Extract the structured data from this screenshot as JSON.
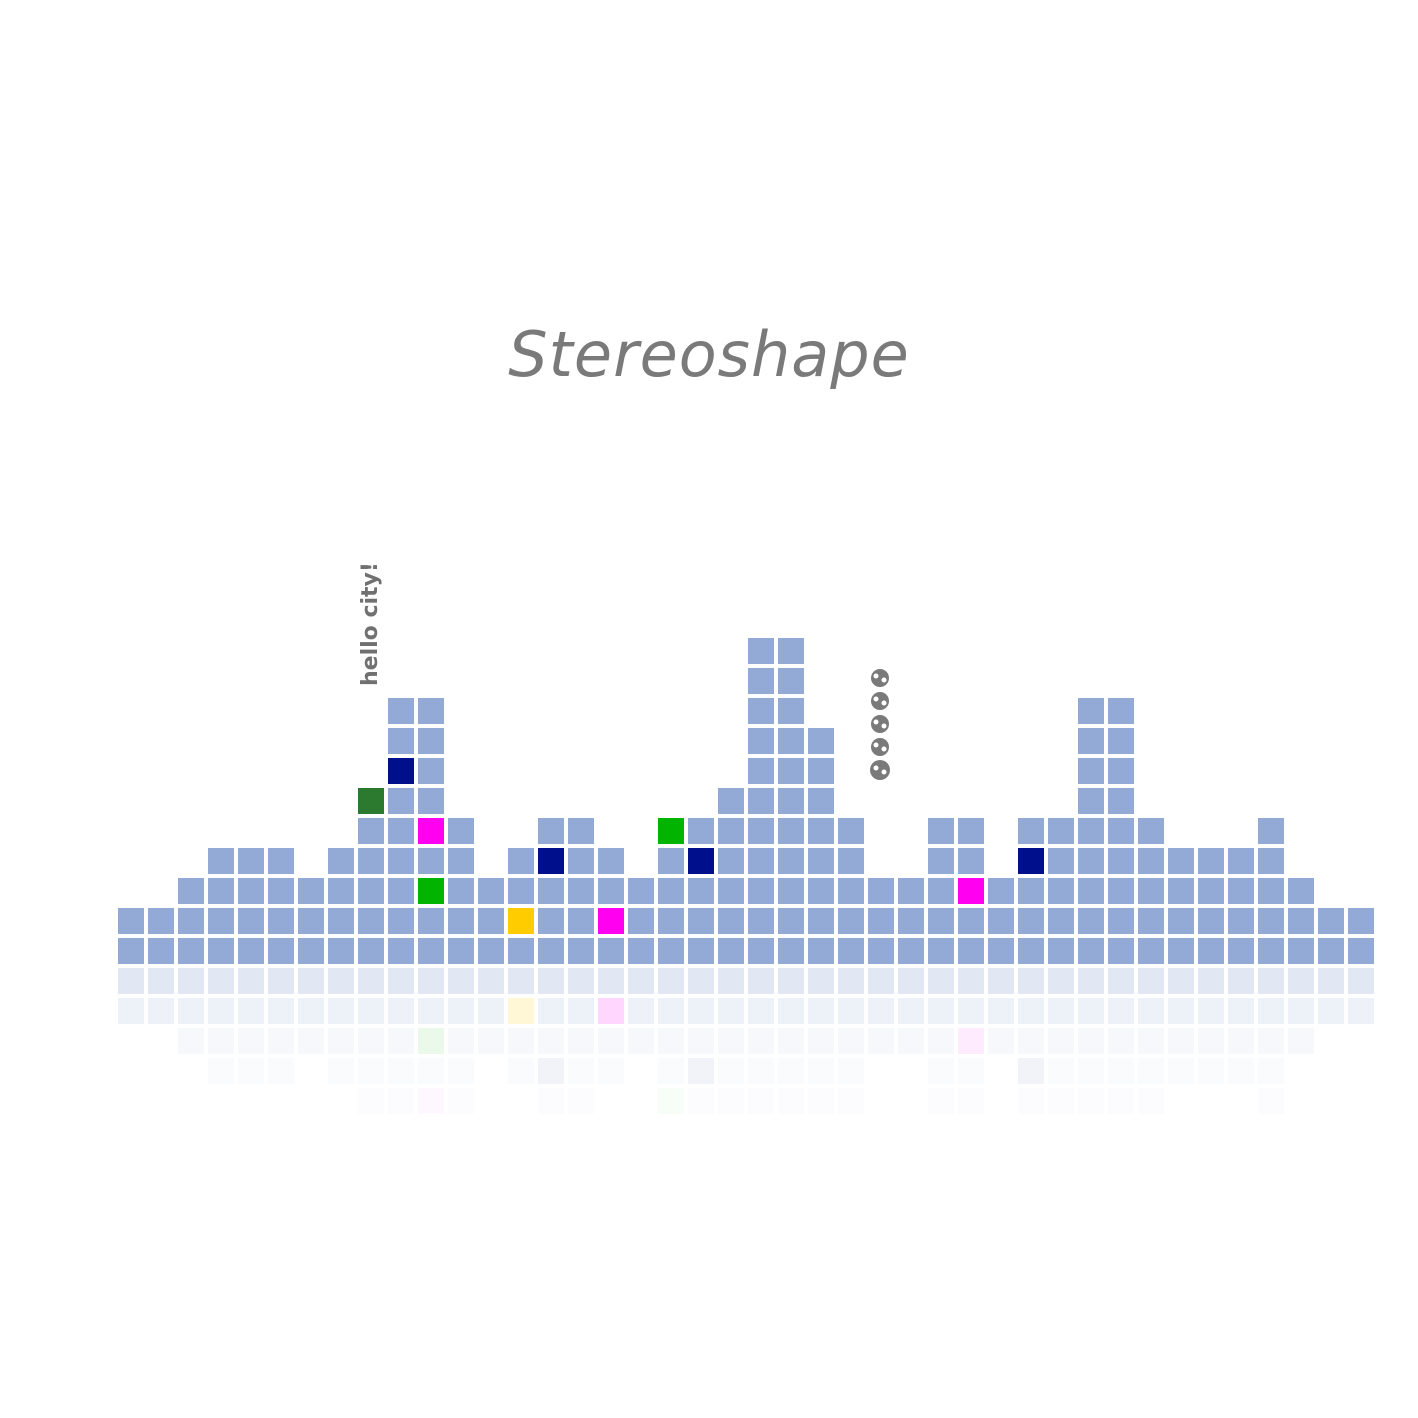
{
  "title": "Stereoshape",
  "label": "hello city!",
  "colors": {
    "tile": "#92aad5",
    "navy": "#00108c",
    "green": "#00b400",
    "dark_green": "#2b7a2f",
    "magenta": "#ff00f0",
    "yellow": "#ffcc00",
    "red": "#ff0000",
    "text": "#7a7a7a"
  },
  "column_heights": [
    2,
    2,
    3,
    4,
    4,
    4,
    3,
    4,
    6,
    9,
    9,
    5,
    3,
    4,
    5,
    5,
    4,
    3,
    5,
    5,
    6,
    11,
    11,
    8,
    5,
    3,
    3,
    5,
    5,
    3,
    5,
    5,
    9,
    9,
    5,
    4,
    4,
    4,
    5,
    3,
    2,
    2
  ],
  "accents": [
    {
      "col": 8,
      "row": 6,
      "color": "dark_green"
    },
    {
      "col": 9,
      "row": 7,
      "color": "navy"
    },
    {
      "col": 10,
      "row": 5,
      "color": "magenta"
    },
    {
      "col": 10,
      "row": 3,
      "color": "green"
    },
    {
      "col": 13,
      "row": 2,
      "color": "yellow"
    },
    {
      "col": 14,
      "row": 4,
      "color": "navy"
    },
    {
      "col": 16,
      "row": 2,
      "color": "magenta"
    },
    {
      "col": 18,
      "row": 5,
      "color": "green"
    },
    {
      "col": 19,
      "row": 4,
      "color": "navy"
    },
    {
      "col": 19,
      "row": 8,
      "color": "navy"
    },
    {
      "col": 26,
      "row": 5,
      "color": "red"
    },
    {
      "col": 28,
      "row": 3,
      "color": "magenta"
    },
    {
      "col": 30,
      "row": 4,
      "color": "navy"
    }
  ]
}
